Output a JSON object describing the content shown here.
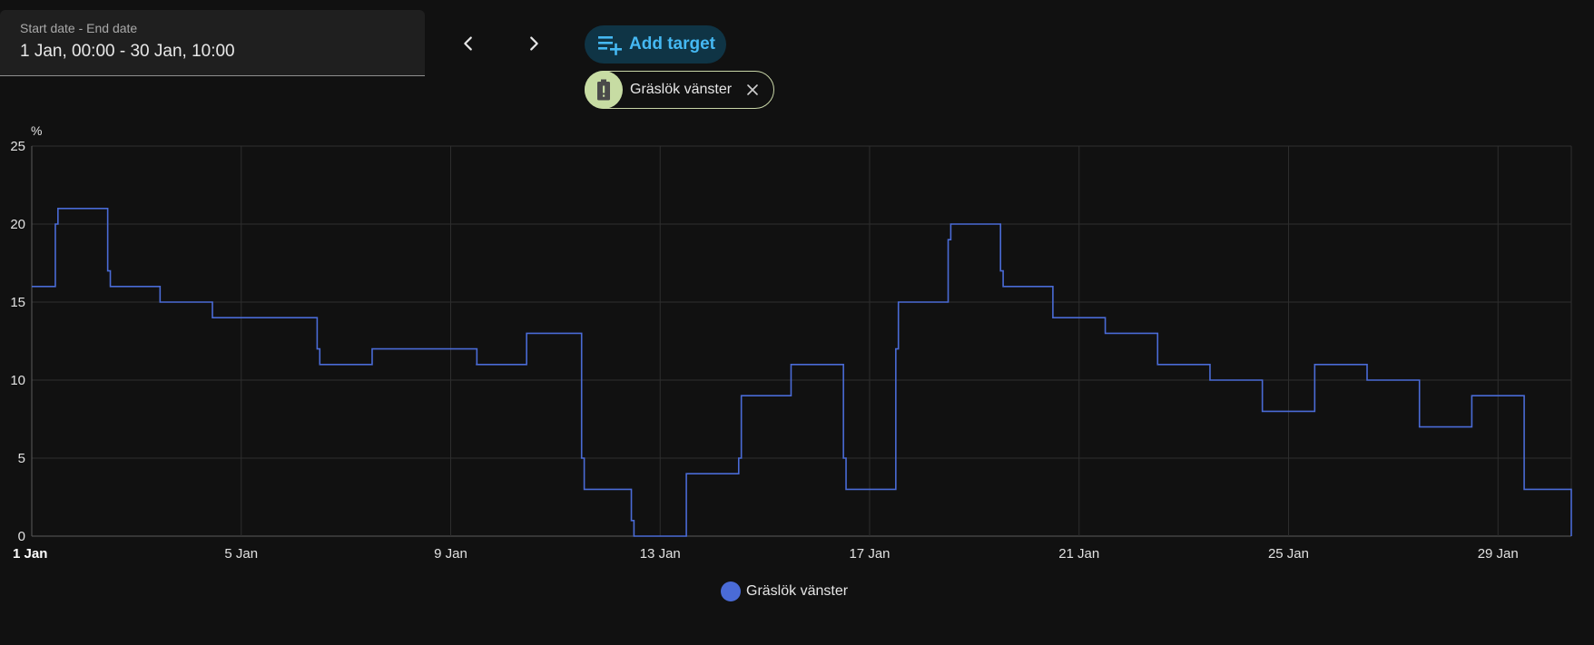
{
  "date_range": {
    "label": "Start date - End date",
    "value": "1 Jan, 00:00 - 30 Jan, 10:00"
  },
  "nav": {
    "prev_icon": "chevron-left-icon",
    "next_icon": "chevron-right-icon"
  },
  "add_target": {
    "label": "Add target",
    "icon": "playlist-plus-icon",
    "color": "#45b8f2"
  },
  "target_chip": {
    "label": "Gräslök vänster",
    "icon": "battery-alert-icon",
    "close_icon": "close-icon"
  },
  "chart_data": {
    "type": "line",
    "step": true,
    "unit": "%",
    "xlabel": "",
    "ylabel": "",
    "title": "",
    "ylim": [
      0,
      25
    ],
    "y_ticks": [
      "0",
      "5",
      "10",
      "15",
      "20",
      "25"
    ],
    "x_ticks": [
      "1 Jan",
      "5 Jan",
      "9 Jan",
      "13 Jan",
      "17 Jan",
      "21 Jan",
      "25 Jan",
      "29 Jan"
    ],
    "x_tick_days": [
      0,
      4,
      8,
      12,
      16,
      20,
      24,
      28
    ],
    "xlim_days": [
      0,
      29.4
    ],
    "grid": true,
    "legend_position": "bottom",
    "series": [
      {
        "name": "Gräslök vänster",
        "color": "#4a6bd6",
        "x_days": [
          0,
          0.45,
          0.5,
          1.45,
          1.5,
          2.45,
          2.5,
          3.45,
          3.5,
          4.45,
          5.45,
          5.5,
          6.45,
          6.5,
          8.45,
          8.5,
          8.48,
          8.52,
          9.45,
          9.5,
          9.55,
          10.5,
          10.55,
          11.45,
          11.5,
          12.45,
          12.5,
          13.5,
          13.55,
          14.5,
          14.55,
          15.5,
          15.55,
          16.5,
          16.55,
          17.5,
          17.55,
          18.5,
          18.55,
          19.5,
          20.5,
          21.5,
          22.5,
          23.5,
          24.5,
          25.5,
          26.5,
          27.5,
          28.5,
          29.4
        ],
        "y_values": [
          16,
          20,
          21,
          17,
          16,
          15,
          15,
          14,
          14,
          14,
          12,
          11,
          11,
          12,
          12,
          11,
          11,
          11,
          13,
          13,
          13,
          5,
          3,
          1,
          0,
          0,
          4,
          5,
          9,
          11,
          11,
          5,
          3,
          12,
          15,
          19,
          20,
          17,
          16,
          14,
          13,
          11,
          10,
          8,
          11,
          10,
          7,
          9,
          3,
          0
        ]
      }
    ]
  },
  "legend": {
    "items": [
      {
        "label": "Gräslök vänster",
        "color": "#4a6bd6"
      }
    ]
  }
}
